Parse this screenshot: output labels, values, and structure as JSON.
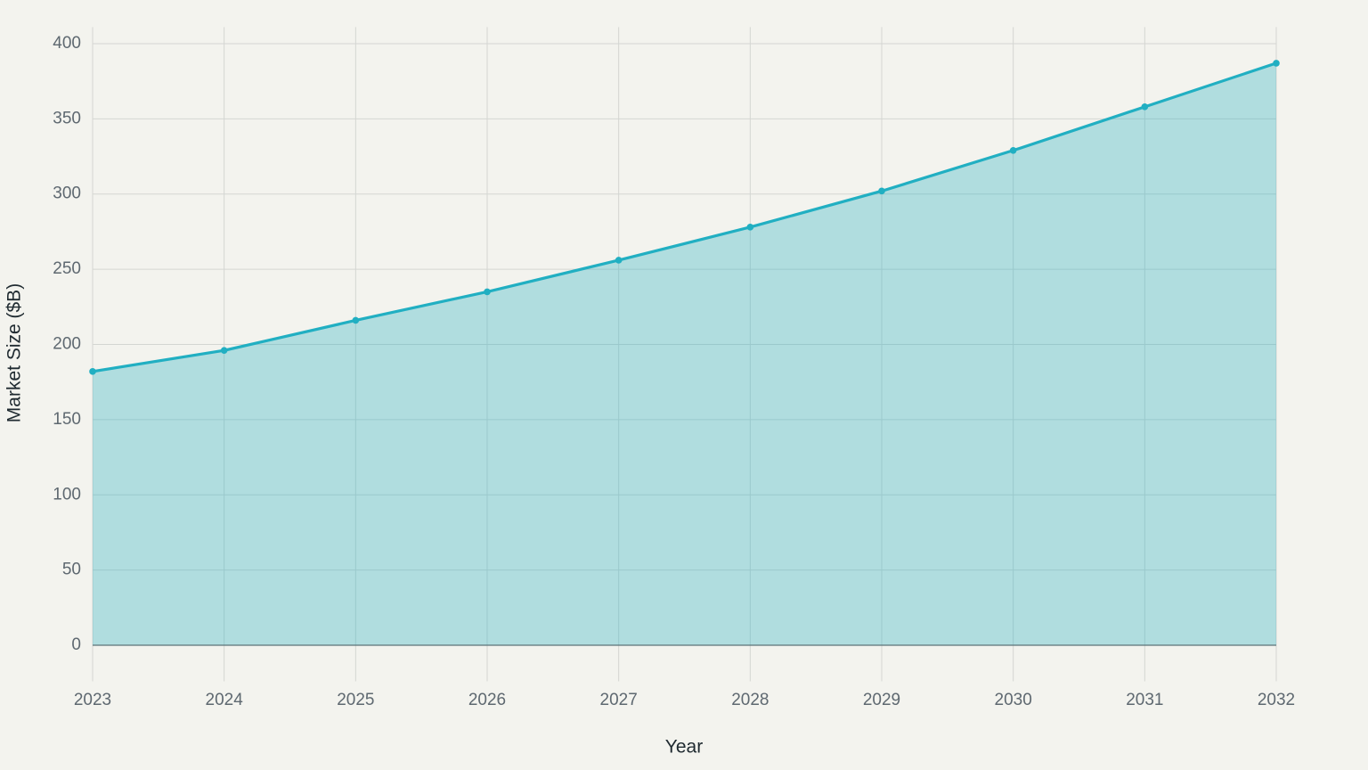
{
  "chart_data": {
    "type": "area",
    "x_label": "Year",
    "y_label": "Market Size ($B)",
    "x": [
      2023,
      2024,
      2025,
      2026,
      2027,
      2028,
      2029,
      2030,
      2031,
      2032
    ],
    "values": [
      182,
      196,
      216,
      235,
      256,
      278,
      302,
      329,
      358,
      387
    ],
    "color": "#21afc2",
    "xlim": [
      2023,
      2032
    ],
    "xticks": [
      2023,
      2024,
      2025,
      2026,
      2027,
      2028,
      2029,
      2030,
      2031,
      2032
    ],
    "ylim": [
      -24,
      411
    ],
    "yticks": [
      0,
      50,
      100,
      150,
      200,
      250,
      300,
      350,
      400
    ],
    "grid": true
  }
}
